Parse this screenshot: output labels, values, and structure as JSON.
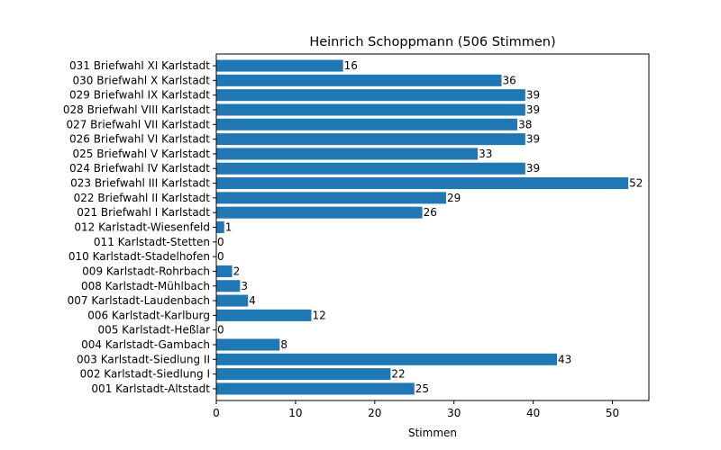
{
  "chart_data": {
    "type": "bar",
    "orientation": "horizontal",
    "title": "Heinrich Schoppmann (506 Stimmen)",
    "xlabel": "Stimmen",
    "ylabel": "",
    "xlim": [
      0,
      54.6
    ],
    "xticks": [
      0,
      10,
      20,
      30,
      40,
      50
    ],
    "grid": false,
    "bar_color": "#1f77b4",
    "categories": [
      "001 Karlstadt-Altstadt",
      "002 Karlstadt-Siedlung I",
      "003 Karlstadt-Siedlung II",
      "004 Karlstadt-Gambach",
      "005 Karlstadt-Heßlar",
      "006 Karlstadt-Karlburg",
      "007 Karlstadt-Laudenbach",
      "008 Karlstadt-Mühlbach",
      "009 Karlstadt-Rohrbach",
      "010 Karlstadt-Stadelhofen",
      "011 Karlstadt-Stetten",
      "012 Karlstadt-Wiesenfeld",
      "021 Briefwahl I Karlstadt",
      "022 Briefwahl II Karlstadt",
      "023 Briefwahl III Karlstadt",
      "024 Briefwahl IV Karlstadt",
      "025 Briefwahl V Karlstadt",
      "026 Briefwahl VI Karlstadt",
      "027 Briefwahl VII Karlstadt",
      "028 Briefwahl VIII Karlstadt",
      "029 Briefwahl IX Karlstadt",
      "030 Briefwahl X Karlstadt",
      "031 Briefwahl XI Karlstadt"
    ],
    "values": [
      25,
      22,
      43,
      8,
      0,
      12,
      4,
      3,
      2,
      0,
      0,
      1,
      26,
      29,
      52,
      39,
      33,
      39,
      38,
      39,
      39,
      36,
      16
    ]
  }
}
